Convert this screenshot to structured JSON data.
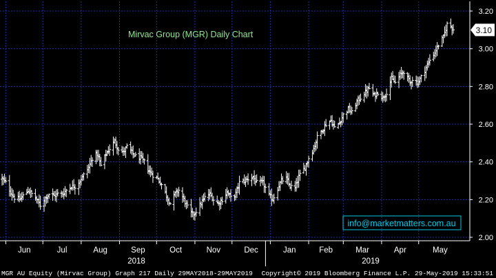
{
  "chart_data": {
    "type": "ohlc",
    "title": "Mirvac Group (MGR) Daily Chart",
    "watermark": "info@marketmatters.com.au",
    "last_price_label": "3.10",
    "ylim": [
      1.98,
      3.24
    ],
    "y_ticks": [
      "2.00",
      "2.20",
      "2.40",
      "2.60",
      "2.80",
      "3.00",
      "3.20"
    ],
    "x_months": [
      "Jun",
      "Jul",
      "Aug",
      "Sep",
      "Oct",
      "Nov",
      "Dec",
      "Jan",
      "Feb",
      "Mar",
      "Apr",
      "May"
    ],
    "x_years": [
      "2018",
      "2019"
    ],
    "grid": true,
    "colors": {
      "background": "#000000",
      "grid": "#1e2fa8",
      "bars": "#ffffff",
      "title": "#8ee88e",
      "watermark": "#00c8e6",
      "footer": "#ffffff"
    },
    "series": [
      {
        "values": [
          [
            "2018-05-29",
            2.31
          ],
          [
            "2018-06-01",
            2.29
          ],
          [
            "2018-06-05",
            2.24
          ],
          [
            "2018-06-08",
            2.21
          ],
          [
            "2018-06-12",
            2.2
          ],
          [
            "2018-06-15",
            2.22
          ],
          [
            "2018-06-19",
            2.25
          ],
          [
            "2018-06-22",
            2.23
          ],
          [
            "2018-06-26",
            2.2
          ],
          [
            "2018-06-29",
            2.17
          ],
          [
            "2018-07-03",
            2.21
          ],
          [
            "2018-07-06",
            2.23
          ],
          [
            "2018-07-10",
            2.22
          ],
          [
            "2018-07-13",
            2.23
          ],
          [
            "2018-07-17",
            2.23
          ],
          [
            "2018-07-20",
            2.25
          ],
          [
            "2018-07-24",
            2.27
          ],
          [
            "2018-07-27",
            2.27
          ],
          [
            "2018-07-31",
            2.3
          ],
          [
            "2018-08-03",
            2.33
          ],
          [
            "2018-08-07",
            2.37
          ],
          [
            "2018-08-10",
            2.42
          ],
          [
            "2018-08-14",
            2.44
          ],
          [
            "2018-08-17",
            2.38
          ],
          [
            "2018-08-21",
            2.44
          ],
          [
            "2018-08-24",
            2.47
          ],
          [
            "2018-08-28",
            2.51
          ],
          [
            "2018-08-31",
            2.47
          ],
          [
            "2018-09-04",
            2.45
          ],
          [
            "2018-09-07",
            2.48
          ],
          [
            "2018-09-11",
            2.45
          ],
          [
            "2018-09-14",
            2.43
          ],
          [
            "2018-09-18",
            2.42
          ],
          [
            "2018-09-21",
            2.4
          ],
          [
            "2018-09-25",
            2.35
          ],
          [
            "2018-09-28",
            2.33
          ],
          [
            "2018-10-02",
            2.31
          ],
          [
            "2018-10-05",
            2.28
          ],
          [
            "2018-10-09",
            2.22
          ],
          [
            "2018-10-12",
            2.18
          ],
          [
            "2018-10-16",
            2.23
          ],
          [
            "2018-10-19",
            2.25
          ],
          [
            "2018-10-23",
            2.2
          ],
          [
            "2018-10-26",
            2.16
          ],
          [
            "2018-10-30",
            2.12
          ],
          [
            "2018-11-02",
            2.14
          ],
          [
            "2018-11-06",
            2.18
          ],
          [
            "2018-11-09",
            2.21
          ],
          [
            "2018-11-13",
            2.23
          ],
          [
            "2018-11-16",
            2.2
          ],
          [
            "2018-11-20",
            2.18
          ],
          [
            "2018-11-23",
            2.2
          ],
          [
            "2018-11-27",
            2.24
          ],
          [
            "2018-11-30",
            2.21
          ],
          [
            "2018-12-04",
            2.23
          ],
          [
            "2018-12-07",
            2.29
          ],
          [
            "2018-12-11",
            2.3
          ],
          [
            "2018-12-14",
            2.31
          ],
          [
            "2018-12-18",
            2.32
          ],
          [
            "2018-12-21",
            2.29
          ],
          [
            "2018-12-26",
            2.29
          ],
          [
            "2018-12-31",
            2.22
          ],
          [
            "2019-01-03",
            2.2
          ],
          [
            "2019-01-07",
            2.26
          ],
          [
            "2019-01-10",
            2.3
          ],
          [
            "2019-01-14",
            2.31
          ],
          [
            "2019-01-17",
            2.27
          ],
          [
            "2019-01-21",
            2.26
          ],
          [
            "2019-01-24",
            2.32
          ],
          [
            "2019-01-29",
            2.37
          ],
          [
            "2019-02-01",
            2.42
          ],
          [
            "2019-02-05",
            2.47
          ],
          [
            "2019-02-08",
            2.53
          ],
          [
            "2019-02-12",
            2.57
          ],
          [
            "2019-02-15",
            2.6
          ],
          [
            "2019-02-19",
            2.62
          ],
          [
            "2019-02-22",
            2.58
          ],
          [
            "2019-02-26",
            2.61
          ],
          [
            "2019-03-01",
            2.65
          ],
          [
            "2019-03-05",
            2.68
          ],
          [
            "2019-03-08",
            2.66
          ],
          [
            "2019-03-12",
            2.72
          ],
          [
            "2019-03-15",
            2.74
          ],
          [
            "2019-03-19",
            2.77
          ],
          [
            "2019-03-22",
            2.79
          ],
          [
            "2019-03-26",
            2.75
          ],
          [
            "2019-03-29",
            2.77
          ],
          [
            "2019-04-02",
            2.74
          ],
          [
            "2019-04-05",
            2.77
          ],
          [
            "2019-04-09",
            2.84
          ],
          [
            "2019-04-12",
            2.82
          ],
          [
            "2019-04-16",
            2.86
          ],
          [
            "2019-04-19",
            2.88
          ],
          [
            "2019-04-24",
            2.82
          ],
          [
            "2019-04-26",
            2.84
          ],
          [
            "2019-04-30",
            2.82
          ],
          [
            "2019-05-03",
            2.85
          ],
          [
            "2019-05-07",
            2.9
          ],
          [
            "2019-05-10",
            2.94
          ],
          [
            "2019-05-14",
            2.98
          ],
          [
            "2019-05-17",
            3.02
          ],
          [
            "2019-05-21",
            3.06
          ],
          [
            "2019-05-24",
            3.13
          ],
          [
            "2019-05-27",
            3.12
          ],
          [
            "2019-05-29",
            3.1
          ]
        ]
      }
    ]
  },
  "footer": {
    "left": "MGR AU Equity (Mirvac Group) Graph 217  Daily 29MAY2018-29MAY2019",
    "right": "Copyright© 2019 Bloomberg Finance L.P.  29-May-2019 15:33:51"
  }
}
